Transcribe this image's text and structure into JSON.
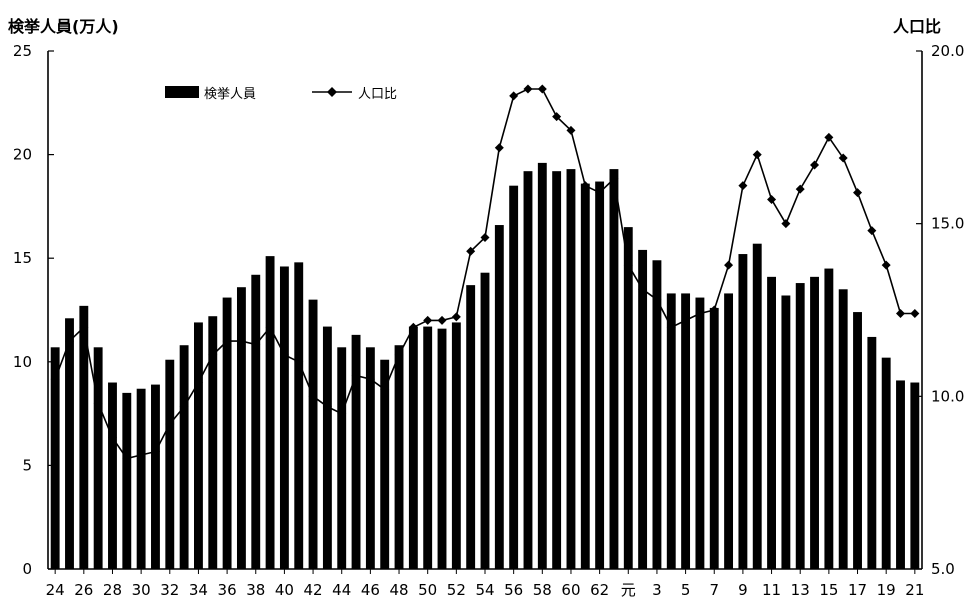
{
  "chart_data": {
    "type": "bar",
    "y_left_label": "検挙人員(万人)",
    "y_right_label": "人口比",
    "y_left_lim": [
      0,
      25
    ],
    "y_left_ticks": [
      "0",
      "5",
      "10",
      "15",
      "20",
      "25"
    ],
    "y_right_lim": [
      5.0,
      20.0
    ],
    "y_right_ticks": [
      "5.0",
      "10.0",
      "15.0",
      "20.0"
    ],
    "grid": false,
    "legend_position": "top-left",
    "categories": [
      "24",
      "25",
      "26",
      "27",
      "28",
      "29",
      "30",
      "31",
      "32",
      "33",
      "34",
      "35",
      "36",
      "37",
      "38",
      "39",
      "40",
      "41",
      "42",
      "43",
      "44",
      "45",
      "46",
      "47",
      "48",
      "49",
      "50",
      "51",
      "52",
      "53",
      "54",
      "55",
      "56",
      "57",
      "58",
      "59",
      "60",
      "61",
      "62",
      "63",
      "元",
      "2",
      "3",
      "4",
      "5",
      "6",
      "7",
      "8",
      "9",
      "10",
      "11",
      "12",
      "13",
      "14",
      "15",
      "16",
      "17",
      "18",
      "19",
      "20",
      "21"
    ],
    "x_tick_labels": [
      "24",
      "26",
      "28",
      "30",
      "32",
      "34",
      "36",
      "38",
      "40",
      "42",
      "44",
      "46",
      "48",
      "50",
      "52",
      "54",
      "56",
      "58",
      "60",
      "62",
      "元",
      "3",
      "5",
      "7",
      "9",
      "11",
      "13",
      "15",
      "17",
      "19",
      "21"
    ],
    "series": [
      {
        "name": "検挙人員",
        "axis": "left",
        "render": "bar",
        "values": [
          10.7,
          12.1,
          12.7,
          10.7,
          9.0,
          8.5,
          8.7,
          8.9,
          10.1,
          10.8,
          11.9,
          12.2,
          13.1,
          13.6,
          14.2,
          15.1,
          14.6,
          14.8,
          13.0,
          11.7,
          10.7,
          11.3,
          10.7,
          10.1,
          10.8,
          11.7,
          11.7,
          11.6,
          11.9,
          13.7,
          14.3,
          16.6,
          18.5,
          19.2,
          19.6,
          19.2,
          19.3,
          18.6,
          18.7,
          19.3,
          16.5,
          15.4,
          14.9,
          13.3,
          13.3,
          13.1,
          12.6,
          13.3,
          15.2,
          15.7,
          14.1,
          13.2,
          13.8,
          14.1,
          14.5,
          13.5,
          12.4,
          11.2,
          10.2,
          9.1,
          9.0
        ]
      },
      {
        "name": "人口比",
        "axis": "right",
        "render": "line",
        "values": [
          10.5,
          11.6,
          12.0,
          9.8,
          8.8,
          8.2,
          8.3,
          8.4,
          9.2,
          9.7,
          10.4,
          11.2,
          11.6,
          11.6,
          11.5,
          12.0,
          11.2,
          11.0,
          10.0,
          9.7,
          9.5,
          10.6,
          10.5,
          10.2,
          11.2,
          12.0,
          12.2,
          12.2,
          12.3,
          14.2,
          14.6,
          17.2,
          18.7,
          18.9,
          18.9,
          18.1,
          17.7,
          16.1,
          15.9,
          16.3,
          13.8,
          13.1,
          12.8,
          12.0,
          12.2,
          12.4,
          12.5,
          13.8,
          16.1,
          17.0,
          15.7,
          15.0,
          16.0,
          16.7,
          17.5,
          16.9,
          15.9,
          14.8,
          13.8,
          12.4,
          12.4
        ]
      }
    ]
  }
}
